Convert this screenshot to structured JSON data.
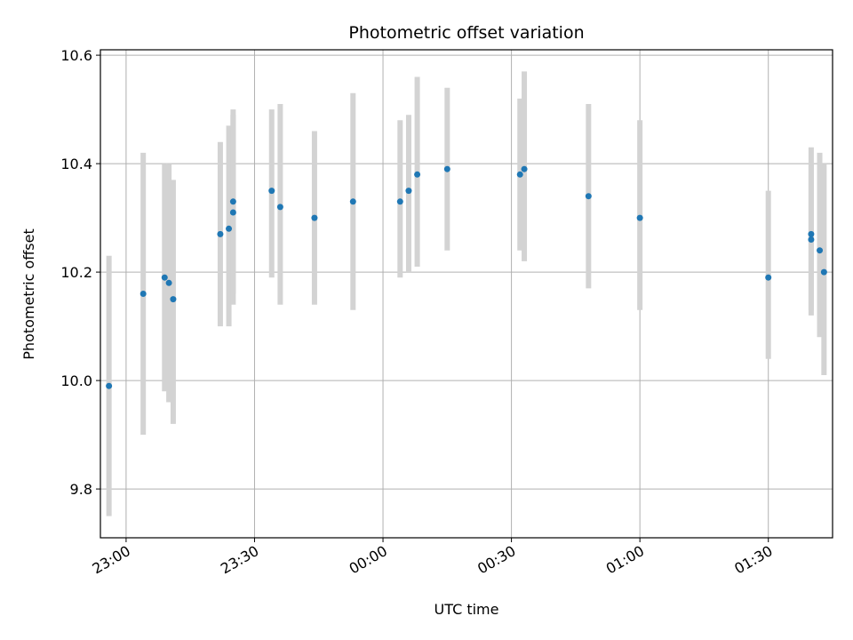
{
  "chart_data": {
    "type": "scatter",
    "title": "Photometric offset variation",
    "xlabel": "UTC time",
    "ylabel": "Photometric offset",
    "x_unit": "UTC time (HH:MM, from 22:54 to 01:45)",
    "xlim": [
      "22:54",
      "01:45"
    ],
    "ylim": [
      9.71,
      10.61
    ],
    "grid": true,
    "legend": "none",
    "x_ticks": [
      "23:00",
      "23:30",
      "00:00",
      "00:30",
      "01:00",
      "01:30"
    ],
    "y_ticks": [
      9.8,
      10.0,
      10.2,
      10.4,
      10.6
    ],
    "colors": {
      "point": "#1f77b4",
      "errorbar": "#d3d3d3",
      "grid": "#b0b0b0",
      "axis": "#000000"
    },
    "series": [
      {
        "points": [
          {
            "x": "22:56",
            "y": 9.99,
            "ylo": 9.75,
            "yhi": 10.23
          },
          {
            "x": "23:04",
            "y": 10.16,
            "ylo": 9.9,
            "yhi": 10.42
          },
          {
            "x": "23:09",
            "y": 10.19,
            "ylo": 9.98,
            "yhi": 10.4
          },
          {
            "x": "23:10",
            "y": 10.18,
            "ylo": 9.96,
            "yhi": 10.4
          },
          {
            "x": "23:11",
            "y": 10.15,
            "ylo": 9.92,
            "yhi": 10.37
          },
          {
            "x": "23:22",
            "y": 10.27,
            "ylo": 10.1,
            "yhi": 10.44
          },
          {
            "x": "23:24",
            "y": 10.28,
            "ylo": 10.1,
            "yhi": 10.47
          },
          {
            "x": "23:25",
            "y": 10.31,
            "ylo": 10.14,
            "yhi": 10.49
          },
          {
            "x": "23:25",
            "y": 10.33,
            "ylo": 10.16,
            "yhi": 10.5
          },
          {
            "x": "23:34",
            "y": 10.35,
            "ylo": 10.19,
            "yhi": 10.5
          },
          {
            "x": "23:36",
            "y": 10.32,
            "ylo": 10.14,
            "yhi": 10.51
          },
          {
            "x": "23:44",
            "y": 10.3,
            "ylo": 10.14,
            "yhi": 10.46
          },
          {
            "x": "23:53",
            "y": 10.33,
            "ylo": 10.13,
            "yhi": 10.53
          },
          {
            "x": "00:04",
            "y": 10.33,
            "ylo": 10.19,
            "yhi": 10.48
          },
          {
            "x": "00:06",
            "y": 10.35,
            "ylo": 10.2,
            "yhi": 10.49
          },
          {
            "x": "00:08",
            "y": 10.38,
            "ylo": 10.21,
            "yhi": 10.56
          },
          {
            "x": "00:15",
            "y": 10.39,
            "ylo": 10.24,
            "yhi": 10.54
          },
          {
            "x": "00:32",
            "y": 10.38,
            "ylo": 10.24,
            "yhi": 10.52
          },
          {
            "x": "00:33",
            "y": 10.39,
            "ylo": 10.22,
            "yhi": 10.57
          },
          {
            "x": "00:48",
            "y": 10.34,
            "ylo": 10.17,
            "yhi": 10.51
          },
          {
            "x": "01:00",
            "y": 10.3,
            "ylo": 10.13,
            "yhi": 10.48
          },
          {
            "x": "01:30",
            "y": 10.19,
            "ylo": 10.04,
            "yhi": 10.35
          },
          {
            "x": "01:40",
            "y": 10.27,
            "ylo": 10.12,
            "yhi": 10.43
          },
          {
            "x": "01:40",
            "y": 10.26,
            "ylo": 10.13,
            "yhi": 10.4
          },
          {
            "x": "01:42",
            "y": 10.24,
            "ylo": 10.08,
            "yhi": 10.42
          },
          {
            "x": "01:43",
            "y": 10.2,
            "ylo": 10.01,
            "yhi": 10.4
          }
        ]
      }
    ]
  }
}
